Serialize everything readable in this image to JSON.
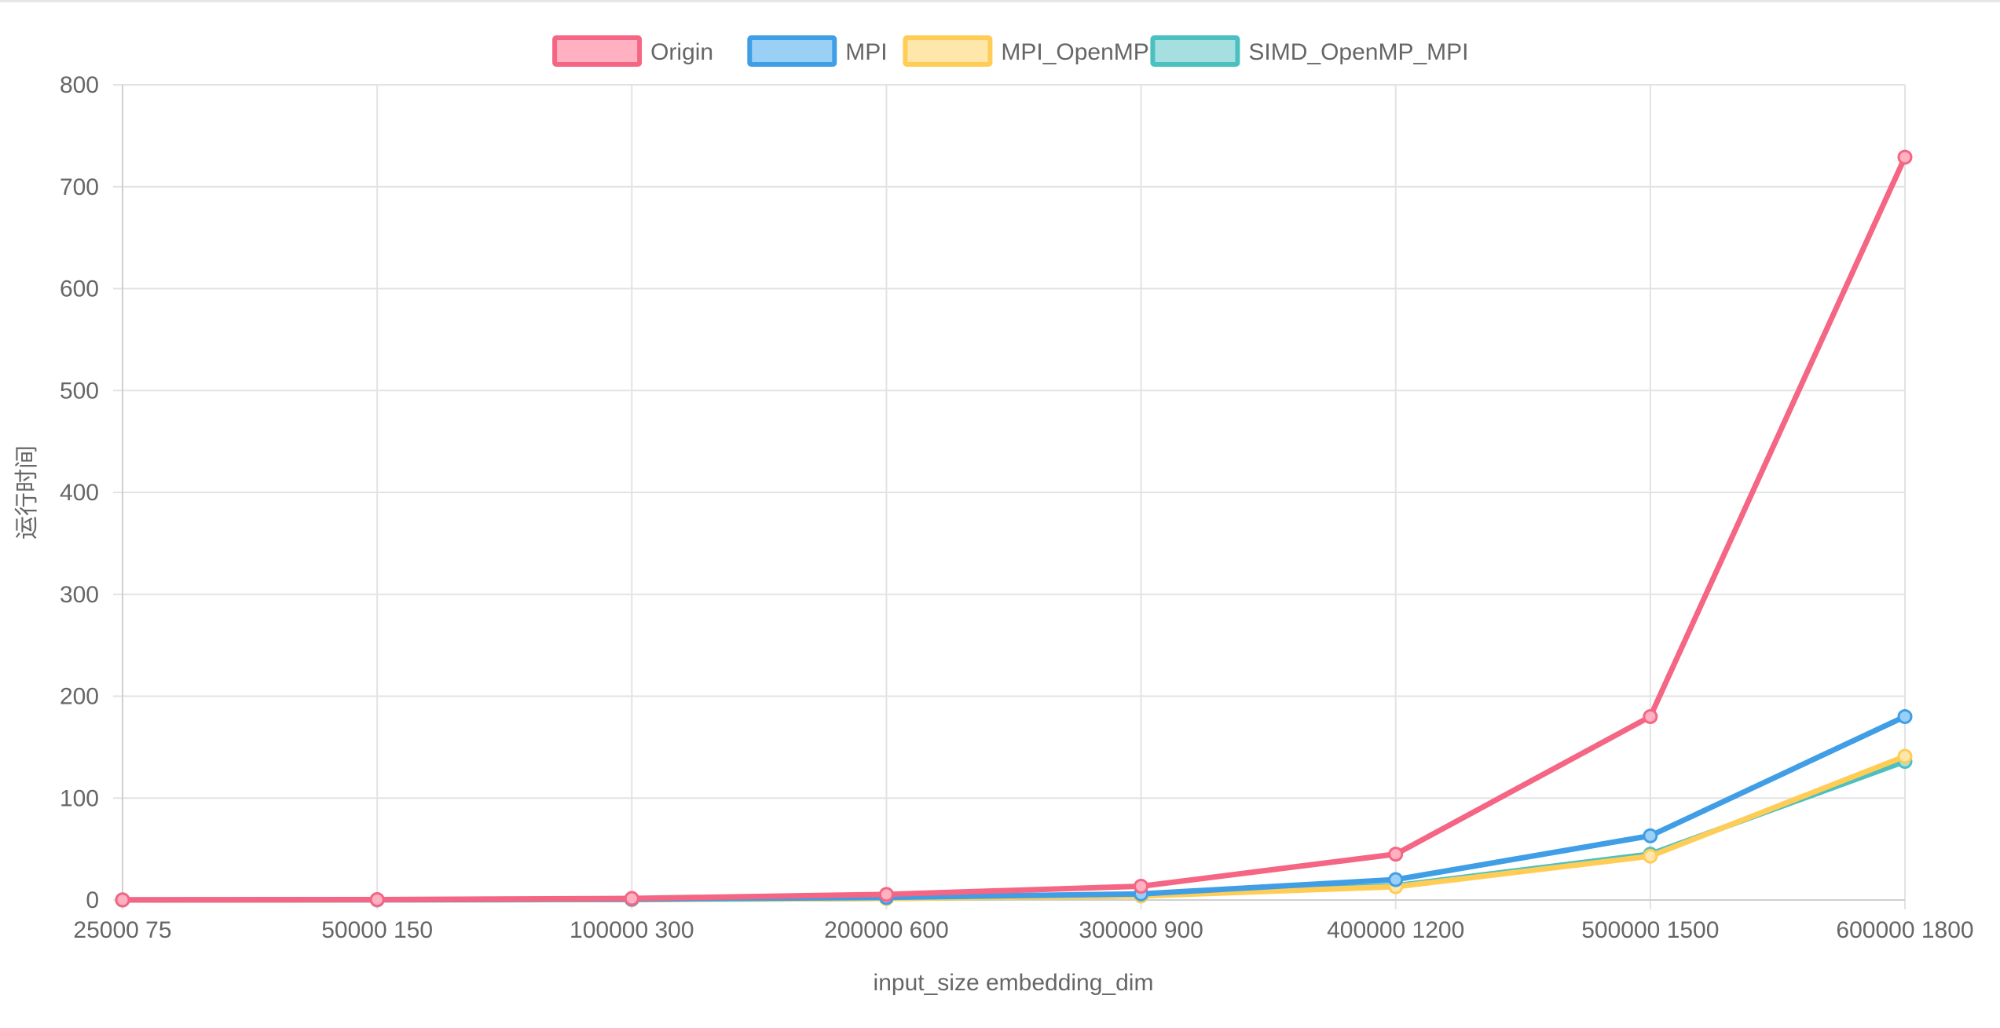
{
  "chart_data": {
    "type": "line",
    "title": "",
    "xlabel": "input_size embedding_dim",
    "ylabel": "运行时间",
    "ylim": [
      0,
      800
    ],
    "yticks": [
      0,
      100,
      200,
      300,
      400,
      500,
      600,
      700,
      800
    ],
    "categories": [
      "25000 75",
      "50000 150",
      "100000 300",
      "200000 600",
      "300000 900",
      "400000 1200",
      "500000 1500",
      "600000 1800"
    ],
    "grid": true,
    "legend_position": "top",
    "series": [
      {
        "name": "Origin",
        "color": "#f56584",
        "fill": "#ffb1c1",
        "values": [
          0.1,
          0.4,
          1.5,
          5.5,
          13.5,
          45,
          180,
          729
        ]
      },
      {
        "name": "MPI",
        "color": "#3f9ee5",
        "fill": "#9ad0f5",
        "values": [
          0.05,
          0.2,
          0.8,
          2.5,
          6,
          20,
          63,
          180
        ]
      },
      {
        "name": "MPI_OpenMP",
        "color": "#ffcd56",
        "fill": "#ffe6aa",
        "values": [
          0.05,
          0.15,
          0.5,
          1.5,
          4,
          13,
          43,
          141
        ]
      },
      {
        "name": "SIMD_OpenMP_MPI",
        "color": "#4bc0c0",
        "fill": "#a5dfdf",
        "values": [
          0.05,
          0.15,
          0.5,
          1.5,
          4,
          14,
          45,
          136
        ]
      }
    ]
  }
}
